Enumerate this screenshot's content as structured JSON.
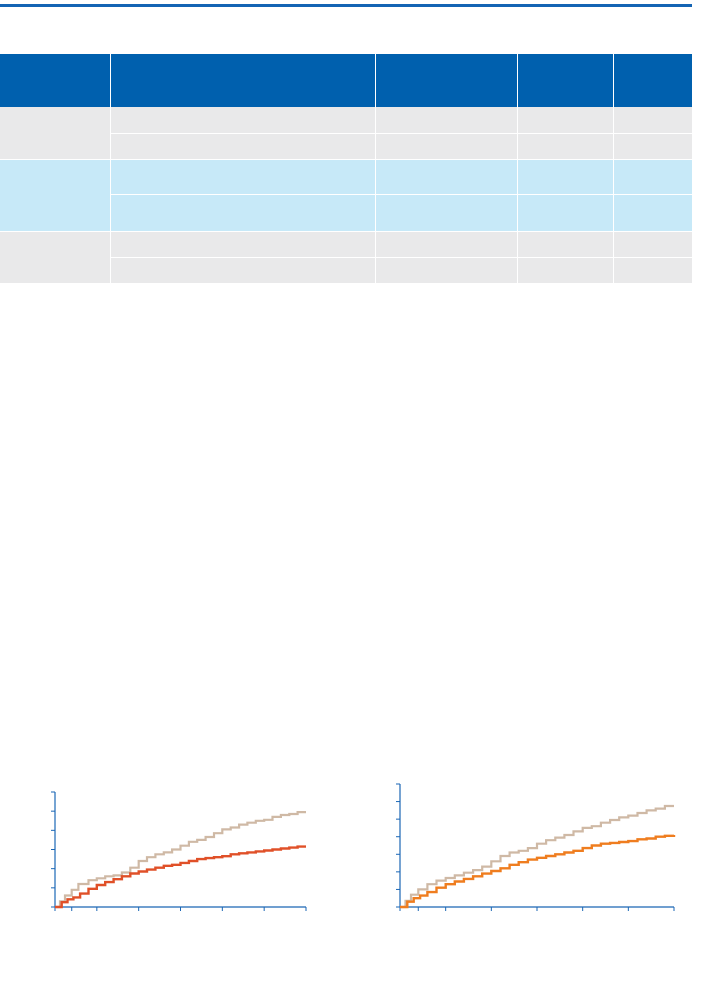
{
  "table": {
    "columns": [
      "",
      "",
      "",
      "",
      ""
    ],
    "groups": [
      {
        "label": "",
        "rows": [
          [
            "",
            "",
            "",
            ""
          ],
          [
            "",
            "",
            "",
            ""
          ]
        ],
        "color": "#e9e9ea"
      },
      {
        "label": "",
        "rows": [
          [
            "",
            "",
            "",
            ""
          ],
          [
            "",
            "",
            "",
            ""
          ]
        ],
        "color": "#c7e9f8"
      },
      {
        "label": "",
        "rows": [
          [
            "",
            "",
            "",
            ""
          ],
          [
            "",
            "",
            "",
            ""
          ]
        ],
        "color": "#e9e9ea"
      }
    ],
    "header_color": "#0060ae"
  },
  "chart_data": [
    {
      "type": "line",
      "title": "",
      "xlabel": "",
      "ylabel": "",
      "xlim": [
        0,
        30
      ],
      "ylim": [
        0,
        6
      ],
      "x_ticks": [
        0,
        2,
        5,
        10,
        15,
        20,
        25,
        30
      ],
      "y_ticks": [
        0,
        1,
        2,
        3,
        4,
        5,
        6
      ],
      "grid": false,
      "series": [
        {
          "color": "#cfb9a5",
          "step": true,
          "points": [
            [
              0,
              0
            ],
            [
              0.6,
              0.3
            ],
            [
              1.2,
              0.6
            ],
            [
              2,
              0.9
            ],
            [
              2.8,
              1.2
            ],
            [
              4,
              1.4
            ],
            [
              5,
              1.5
            ],
            [
              6,
              1.6
            ],
            [
              7,
              1.65
            ],
            [
              8,
              1.8
            ],
            [
              9,
              2.05
            ],
            [
              10,
              2.4
            ],
            [
              11,
              2.6
            ],
            [
              12,
              2.75
            ],
            [
              13,
              2.85
            ],
            [
              14,
              3.0
            ],
            [
              15,
              3.2
            ],
            [
              16,
              3.4
            ],
            [
              17,
              3.5
            ],
            [
              18,
              3.65
            ],
            [
              19,
              3.85
            ],
            [
              20,
              4.05
            ],
            [
              21,
              4.15
            ],
            [
              22,
              4.3
            ],
            [
              23,
              4.4
            ],
            [
              24,
              4.5
            ],
            [
              25,
              4.55
            ],
            [
              26,
              4.7
            ],
            [
              27,
              4.8
            ],
            [
              28,
              4.85
            ],
            [
              29,
              4.95
            ],
            [
              30,
              4.95
            ]
          ]
        },
        {
          "color": "#e05028",
          "step": true,
          "points": [
            [
              0,
              0
            ],
            [
              0.8,
              0.25
            ],
            [
              1.5,
              0.4
            ],
            [
              2.2,
              0.5
            ],
            [
              3,
              0.7
            ],
            [
              4,
              0.95
            ],
            [
              5,
              1.15
            ],
            [
              6,
              1.3
            ],
            [
              7,
              1.45
            ],
            [
              8,
              1.6
            ],
            [
              9,
              1.75
            ],
            [
              10,
              1.85
            ],
            [
              11,
              1.95
            ],
            [
              12,
              2.05
            ],
            [
              13,
              2.15
            ],
            [
              14,
              2.2
            ],
            [
              15,
              2.3
            ],
            [
              16,
              2.4
            ],
            [
              17,
              2.5
            ],
            [
              18,
              2.55
            ],
            [
              19,
              2.6
            ],
            [
              20,
              2.65
            ],
            [
              21,
              2.75
            ],
            [
              22,
              2.8
            ],
            [
              23,
              2.85
            ],
            [
              24,
              2.9
            ],
            [
              25,
              2.95
            ],
            [
              26,
              3.0
            ],
            [
              27,
              3.05
            ],
            [
              28,
              3.1
            ],
            [
              29,
              3.15
            ],
            [
              30,
              3.15
            ]
          ]
        }
      ]
    },
    {
      "type": "line",
      "title": "",
      "xlabel": "",
      "ylabel": "",
      "xlim": [
        0,
        30
      ],
      "ylim": [
        0,
        7
      ],
      "x_ticks": [
        0,
        2,
        5,
        10,
        15,
        20,
        25,
        30
      ],
      "y_ticks": [
        0,
        1,
        2,
        3,
        4,
        5,
        6,
        7
      ],
      "grid": false,
      "series": [
        {
          "color": "#cfb9a5",
          "step": true,
          "points": [
            [
              0,
              0
            ],
            [
              0.6,
              0.35
            ],
            [
              1.2,
              0.7
            ],
            [
              2,
              1.0
            ],
            [
              3,
              1.3
            ],
            [
              4,
              1.5
            ],
            [
              5,
              1.65
            ],
            [
              6,
              1.8
            ],
            [
              7,
              1.95
            ],
            [
              8,
              2.1
            ],
            [
              9,
              2.3
            ],
            [
              10,
              2.6
            ],
            [
              11,
              2.9
            ],
            [
              12,
              3.1
            ],
            [
              13,
              3.2
            ],
            [
              14,
              3.35
            ],
            [
              15,
              3.6
            ],
            [
              16,
              3.8
            ],
            [
              17,
              3.95
            ],
            [
              18,
              4.1
            ],
            [
              19,
              4.3
            ],
            [
              20,
              4.5
            ],
            [
              21,
              4.6
            ],
            [
              22,
              4.8
            ],
            [
              23,
              4.95
            ],
            [
              24,
              5.1
            ],
            [
              25,
              5.2
            ],
            [
              26,
              5.35
            ],
            [
              27,
              5.5
            ],
            [
              28,
              5.6
            ],
            [
              29,
              5.75
            ],
            [
              30,
              5.75
            ]
          ]
        },
        {
          "color": "#ef7d1f",
          "step": true,
          "points": [
            [
              0,
              0
            ],
            [
              0.8,
              0.3
            ],
            [
              1.5,
              0.5
            ],
            [
              2.2,
              0.65
            ],
            [
              3,
              0.85
            ],
            [
              4,
              1.1
            ],
            [
              5,
              1.3
            ],
            [
              6,
              1.45
            ],
            [
              7,
              1.6
            ],
            [
              8,
              1.75
            ],
            [
              9,
              1.9
            ],
            [
              10,
              2.05
            ],
            [
              11,
              2.2
            ],
            [
              12,
              2.4
            ],
            [
              13,
              2.55
            ],
            [
              14,
              2.7
            ],
            [
              15,
              2.8
            ],
            [
              16,
              2.9
            ],
            [
              17,
              3.0
            ],
            [
              18,
              3.1
            ],
            [
              19,
              3.2
            ],
            [
              20,
              3.35
            ],
            [
              21,
              3.5
            ],
            [
              22,
              3.6
            ],
            [
              23,
              3.65
            ],
            [
              24,
              3.7
            ],
            [
              25,
              3.75
            ],
            [
              26,
              3.85
            ],
            [
              27,
              3.9
            ],
            [
              28,
              4.0
            ],
            [
              29,
              4.05
            ],
            [
              30,
              4.1
            ]
          ]
        }
      ]
    }
  ]
}
